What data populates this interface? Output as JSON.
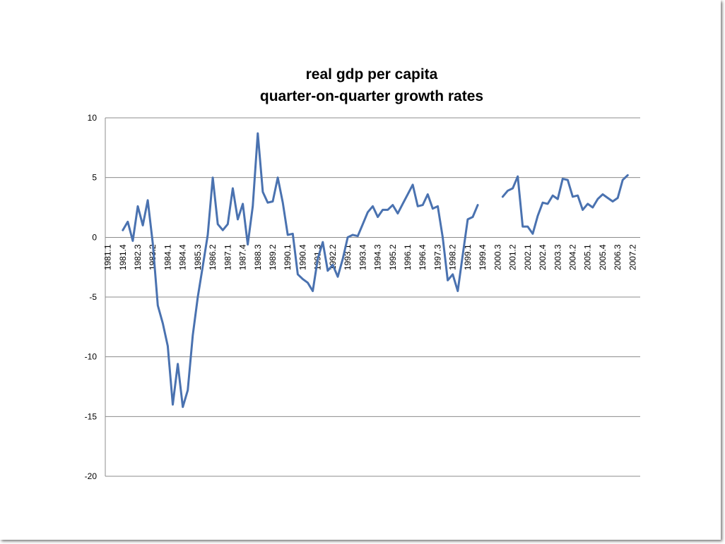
{
  "chart_data": {
    "type": "line",
    "title": [
      "real gdp per capita",
      "quarter-on-quarter growth rates"
    ],
    "xlabel": "",
    "ylabel": "",
    "ylim": [
      -20,
      10
    ],
    "yticks": [
      10,
      5,
      0,
      -5,
      -10,
      -15,
      -20
    ],
    "grid": true,
    "legend": "none",
    "colors": {
      "series": "#4a72b0",
      "grid": "#8c8c8c",
      "text": "#000000"
    },
    "x": [
      "1981.1",
      "1981.2",
      "1981.3",
      "1981.4",
      "1982.1",
      "1982.2",
      "1982.3",
      "1982.4",
      "1983.1",
      "1983.2",
      "1983.3",
      "1983.4",
      "1984.1",
      "1984.2",
      "1984.3",
      "1984.4",
      "1985.1",
      "1985.2",
      "1985.3",
      "1985.4",
      "1986.1",
      "1986.2",
      "1986.3",
      "1986.4",
      "1987.1",
      "1987.2",
      "1987.3",
      "1987.4",
      "1988.1",
      "1988.2",
      "1988.3",
      "1988.4",
      "1989.1",
      "1989.2",
      "1989.3",
      "1989.4",
      "1990.1",
      "1990.2",
      "1990.3",
      "1990.4",
      "1991.1",
      "1991.2",
      "1991.3",
      "1991.4",
      "1992.1",
      "1992.2",
      "1992.3",
      "1992.4",
      "1993.1",
      "1993.2",
      "1993.3",
      "1993.4",
      "1994.1",
      "1994.2",
      "1994.3",
      "1994.4",
      "1995.1",
      "1995.2",
      "1995.3",
      "1995.4",
      "1996.1",
      "1996.2",
      "1996.3",
      "1996.4",
      "1997.1",
      "1997.2",
      "1997.3",
      "1997.4",
      "1998.1",
      "1998.2",
      "1998.3",
      "1998.4",
      "1999.1",
      "1999.2",
      "1999.3",
      "1999.4",
      "2000.1",
      "2000.2",
      "2000.3",
      "2000.4",
      "2001.1",
      "2001.2",
      "2001.3",
      "2001.4",
      "2002.1",
      "2002.2",
      "2002.3",
      "2002.4",
      "2003.1",
      "2003.2",
      "2003.3",
      "2003.4",
      "2004.1",
      "2004.2",
      "2004.3",
      "2004.4",
      "2005.1",
      "2005.2",
      "2005.3",
      "2005.4",
      "2006.1",
      "2006.2",
      "2006.3",
      "2006.4",
      "2007.1",
      "2007.2",
      "2007.3"
    ],
    "tick_labels": [
      "1981.1",
      "1981.4",
      "1982.3",
      "1983.2",
      "1984.1",
      "1984.4",
      "1985.3",
      "1986.2",
      "1987.1",
      "1987.4",
      "1988.3",
      "1989.2",
      "1990.1",
      "1990.4",
      "1991.3",
      "1992.2",
      "1993.1",
      "1993.4",
      "1994.3",
      "1995.2",
      "1996.1",
      "1996.4",
      "1997.3",
      "1998.2",
      "1999.1",
      "1999.4",
      "2000.3",
      "2001.2",
      "2002.1",
      "2002.4",
      "2003.3",
      "2004.2",
      "2005.1",
      "2005.4",
      "2006.3",
      "2007.2"
    ],
    "series": [
      {
        "values": [
          null,
          null,
          null,
          0.6,
          1.3,
          -0.3,
          2.6,
          1.0,
          3.1,
          -0.5,
          -5.7,
          -7.2,
          -9.1,
          -14.0,
          -10.6,
          -14.2,
          -12.8,
          -8.2,
          -5.0,
          -2.4,
          0.2,
          5.0,
          1.1,
          0.6,
          1.1,
          4.1,
          1.5,
          2.8,
          -0.6,
          2.6,
          8.7,
          3.8,
          2.9,
          3.0,
          5.0,
          2.9,
          0.2,
          0.3,
          -3.1,
          -3.5,
          -3.8,
          -4.5,
          -1.8,
          -0.4,
          -2.8,
          -2.3,
          -3.3,
          -1.8,
          0.0,
          0.2,
          0.1,
          1.1,
          2.1,
          2.6,
          1.7,
          2.3,
          2.3,
          2.7,
          2.0,
          2.8,
          3.6,
          4.4,
          2.6,
          2.7,
          3.6,
          2.4,
          2.6,
          0.0,
          -3.6,
          -3.1,
          -4.5,
          -1.5,
          1.5,
          1.7,
          2.7,
          null,
          null,
          null,
          null,
          3.4,
          3.9,
          4.1,
          5.1,
          0.9,
          0.9,
          0.3,
          1.8,
          2.9,
          2.8,
          3.5,
          3.2,
          4.9,
          4.8,
          3.4,
          3.5,
          2.3,
          2.8,
          2.5,
          3.2,
          3.6,
          3.3,
          3.0,
          3.3,
          4.8,
          5.2,
          null,
          null
        ]
      }
    ]
  }
}
